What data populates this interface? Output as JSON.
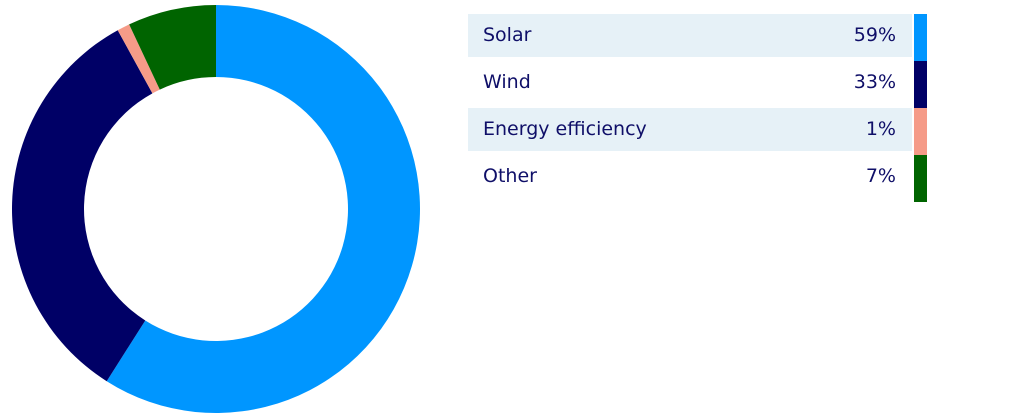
{
  "chart_data": {
    "type": "pie",
    "categories": [
      "Solar",
      "Wind",
      "Energy efficiency",
      "Other"
    ],
    "values": [
      59,
      33,
      1,
      7
    ],
    "value_labels": [
      "59%",
      "33%",
      "1%",
      "7%"
    ],
    "colors": [
      "#0096ff",
      "#000066",
      "#f59b88",
      "#006400"
    ],
    "legend_placement": "right"
  }
}
